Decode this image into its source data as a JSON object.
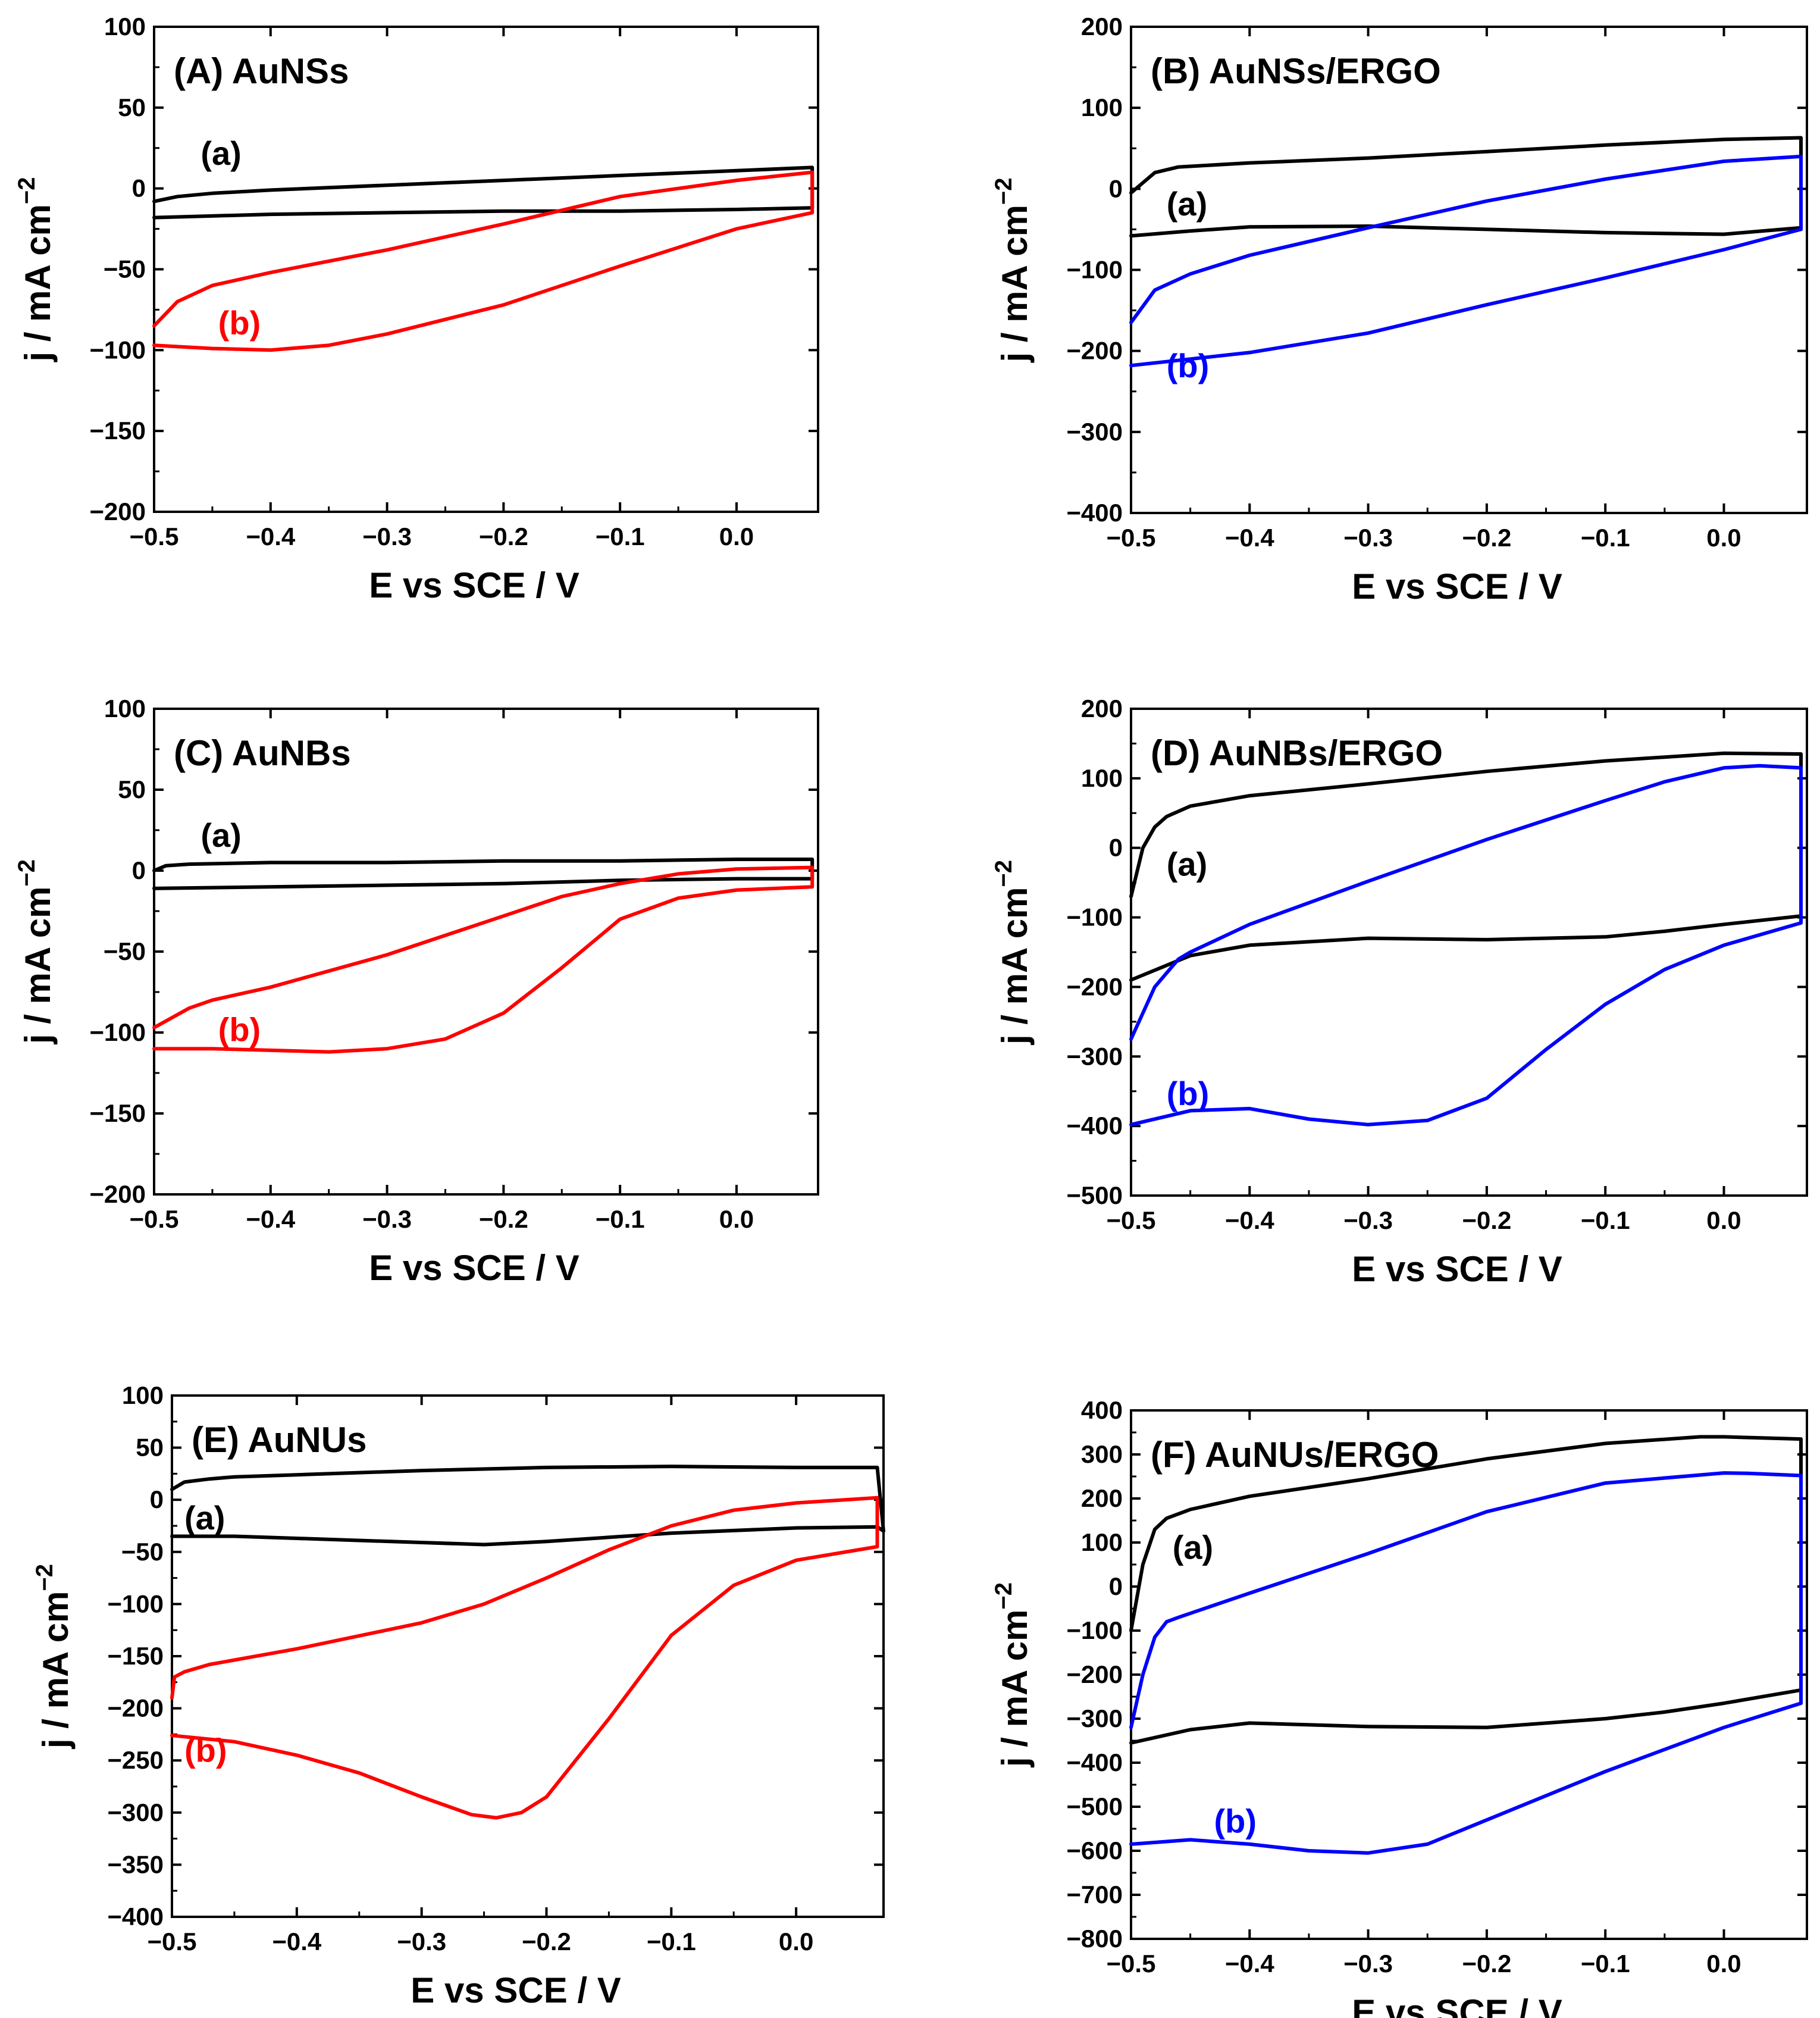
{
  "colors": {
    "black": "#000000",
    "red": "#ff0000",
    "blue": "#0000ff"
  },
  "chart_data": [
    {
      "type": "line",
      "panel": "A",
      "title": "(A) AuNSs",
      "xlabel": "E vs SCE / V",
      "ylabel": "j / mA cm",
      "ylabel_sup": "−2",
      "xlim": [
        -0.5,
        0.07
      ],
      "ylim": [
        -200,
        100
      ],
      "xticks": [
        -0.5,
        -0.4,
        -0.3,
        -0.2,
        -0.1,
        0.0
      ],
      "xtick_labels": [
        "−0.5",
        "−0.4",
        "−0.3",
        "−0.2",
        "−0.1",
        "0.0"
      ],
      "yticks": [
        100,
        50,
        0,
        -50,
        -100,
        -150,
        -200
      ],
      "ytick_labels": [
        "100",
        "50",
        "0",
        "−50",
        "−100",
        "−150",
        "−200"
      ],
      "series": [
        {
          "name": "(a)",
          "color": "#000000",
          "label_at": [
            -0.46,
            22
          ],
          "x": [
            -0.5,
            -0.48,
            -0.45,
            -0.4,
            -0.3,
            -0.2,
            -0.1,
            0.0,
            0.065,
            0.065,
            0.0,
            -0.1,
            -0.2,
            -0.3,
            -0.4,
            -0.45,
            -0.5
          ],
          "y": [
            -8,
            -5,
            -3,
            -1,
            2,
            5,
            8,
            11,
            13,
            -12,
            -13,
            -14,
            -14,
            -15,
            -16,
            -17,
            -18
          ]
        },
        {
          "name": "(b)",
          "color": "#ff0000",
          "label_at": [
            -0.445,
            -83
          ],
          "x": [
            -0.5,
            -0.48,
            -0.45,
            -0.4,
            -0.3,
            -0.2,
            -0.1,
            0.0,
            0.065,
            0.065,
            0.0,
            -0.1,
            -0.2,
            -0.3,
            -0.35,
            -0.4,
            -0.45,
            -0.5
          ],
          "y": [
            -85,
            -70,
            -60,
            -52,
            -38,
            -22,
            -5,
            5,
            10,
            -15,
            -25,
            -48,
            -72,
            -90,
            -97,
            -100,
            -99,
            -97
          ]
        }
      ]
    },
    {
      "type": "line",
      "panel": "B",
      "title": "(B) AuNSs/ERGO",
      "xlabel": "E vs SCE / V",
      "ylabel": "j / mA cm",
      "ylabel_sup": "−2",
      "xlim": [
        -0.5,
        0.07
      ],
      "ylim": [
        -400,
        200
      ],
      "xticks": [
        -0.5,
        -0.4,
        -0.3,
        -0.2,
        -0.1,
        0.0
      ],
      "xtick_labels": [
        "−0.5",
        "−0.4",
        "−0.3",
        "−0.2",
        "−0.1",
        "0.0"
      ],
      "yticks": [
        200,
        100,
        0,
        -100,
        -200,
        -300,
        -400
      ],
      "ytick_labels": [
        "200",
        "100",
        "0",
        "−100",
        "−200",
        "−300",
        "−400"
      ],
      "series": [
        {
          "name": "(a)",
          "color": "#000000",
          "label_at": [
            -0.47,
            -18
          ],
          "x": [
            -0.5,
            -0.48,
            -0.46,
            -0.4,
            -0.3,
            -0.2,
            -0.1,
            0.0,
            0.065,
            0.065,
            0.0,
            -0.1,
            -0.2,
            -0.3,
            -0.4,
            -0.45,
            -0.5
          ],
          "y": [
            -5,
            20,
            27,
            32,
            38,
            46,
            54,
            61,
            63,
            -48,
            -56,
            -54,
            -50,
            -46,
            -47,
            -52,
            -58
          ]
        },
        {
          "name": "(b)",
          "color": "#0000ff",
          "label_at": [
            -0.47,
            -218
          ],
          "x": [
            -0.5,
            -0.48,
            -0.45,
            -0.4,
            -0.3,
            -0.2,
            -0.1,
            0.0,
            0.065,
            0.065,
            0.0,
            -0.1,
            -0.2,
            -0.3,
            -0.4,
            -0.45,
            -0.5
          ],
          "y": [
            -165,
            -125,
            -105,
            -82,
            -48,
            -15,
            12,
            34,
            40,
            -50,
            -75,
            -110,
            -143,
            -178,
            -202,
            -210,
            -218
          ]
        }
      ]
    },
    {
      "type": "line",
      "panel": "C",
      "title": "(C) AuNBs",
      "xlabel": "E vs SCE / V",
      "ylabel": "j / mA cm",
      "ylabel_sup": "−2",
      "xlim": [
        -0.5,
        0.07
      ],
      "ylim": [
        -200,
        100
      ],
      "xticks": [
        -0.5,
        -0.4,
        -0.3,
        -0.2,
        -0.1,
        0.0
      ],
      "xtick_labels": [
        "−0.5",
        "−0.4",
        "−0.3",
        "−0.2",
        "−0.1",
        "0.0"
      ],
      "yticks": [
        100,
        50,
        0,
        -50,
        -100,
        -150,
        -200
      ],
      "ytick_labels": [
        "100",
        "50",
        "0",
        "−50",
        "−100",
        "−150",
        "−200"
      ],
      "series": [
        {
          "name": "(a)",
          "color": "#000000",
          "label_at": [
            -0.46,
            22
          ],
          "x": [
            -0.5,
            -0.49,
            -0.47,
            -0.4,
            -0.3,
            -0.2,
            -0.1,
            0.0,
            0.065,
            0.065,
            0.0,
            -0.1,
            -0.2,
            -0.3,
            -0.4,
            -0.5
          ],
          "y": [
            0,
            3,
            4,
            5,
            5,
            6,
            6,
            7,
            7,
            -5,
            -5,
            -6,
            -8,
            -9,
            -10,
            -11
          ]
        },
        {
          "name": "(b)",
          "color": "#ff0000",
          "label_at": [
            -0.445,
            -98
          ],
          "x": [
            -0.5,
            -0.47,
            -0.45,
            -0.4,
            -0.3,
            -0.2,
            -0.15,
            -0.1,
            -0.05,
            0.0,
            0.065,
            0.065,
            0.0,
            -0.05,
            -0.1,
            -0.15,
            -0.2,
            -0.25,
            -0.3,
            -0.35,
            -0.4,
            -0.45,
            -0.5
          ],
          "y": [
            -97,
            -85,
            -80,
            -72,
            -52,
            -28,
            -16,
            -8,
            -2,
            1,
            2,
            -10,
            -12,
            -17,
            -30,
            -60,
            -88,
            -104,
            -110,
            -112,
            -111,
            -110,
            -110
          ]
        }
      ]
    },
    {
      "type": "line",
      "panel": "D",
      "title": "(D) AuNBs/ERGO",
      "xlabel": "E vs SCE / V",
      "ylabel": "j / mA cm",
      "ylabel_sup": "−2",
      "xlim": [
        -0.5,
        0.07
      ],
      "ylim": [
        -500,
        200
      ],
      "xticks": [
        -0.5,
        -0.4,
        -0.3,
        -0.2,
        -0.1,
        0.0
      ],
      "xtick_labels": [
        "−0.5",
        "−0.4",
        "−0.3",
        "−0.2",
        "−0.1",
        "0.0"
      ],
      "yticks": [
        200,
        100,
        0,
        -100,
        -200,
        -300,
        -400,
        -500
      ],
      "ytick_labels": [
        "200",
        "100",
        "0",
        "−100",
        "−200",
        "−300",
        "−400",
        "−500"
      ],
      "series": [
        {
          "name": "(a)",
          "color": "#000000",
          "label_at": [
            -0.47,
            -23
          ],
          "x": [
            -0.5,
            -0.49,
            -0.48,
            -0.47,
            -0.45,
            -0.4,
            -0.3,
            -0.2,
            -0.1,
            0.0,
            0.065,
            0.065,
            0.0,
            -0.05,
            -0.1,
            -0.2,
            -0.3,
            -0.4,
            -0.45,
            -0.5
          ],
          "y": [
            -70,
            0,
            30,
            45,
            60,
            75,
            92,
            110,
            125,
            136,
            135,
            -98,
            -110,
            -120,
            -128,
            -132,
            -130,
            -140,
            -155,
            -190
          ]
        },
        {
          "name": "(b)",
          "color": "#0000ff",
          "label_at": [
            -0.47,
            -353
          ],
          "x": [
            -0.5,
            -0.48,
            -0.46,
            -0.45,
            -0.4,
            -0.3,
            -0.2,
            -0.1,
            -0.05,
            0.0,
            0.03,
            0.065,
            0.065,
            0.0,
            -0.05,
            -0.1,
            -0.15,
            -0.2,
            -0.25,
            -0.3,
            -0.35,
            -0.4,
            -0.45,
            -0.5
          ],
          "y": [
            -275,
            -200,
            -160,
            -150,
            -110,
            -48,
            12,
            68,
            95,
            115,
            118,
            115,
            -108,
            -140,
            -175,
            -225,
            -290,
            -360,
            -392,
            -398,
            -390,
            -375,
            -378,
            -398
          ]
        }
      ]
    },
    {
      "type": "line",
      "panel": "E",
      "title": "(E) AuNUs",
      "xlabel": "E vs SCE / V",
      "ylabel": "j / mA cm",
      "ylabel_sup": "−2",
      "xlim": [
        -0.5,
        0.07
      ],
      "ylim": [
        -400,
        100
      ],
      "xticks": [
        -0.5,
        -0.4,
        -0.3,
        -0.2,
        -0.1,
        0.0
      ],
      "xtick_labels": [
        "−0.5",
        "−0.4",
        "−0.3",
        "−0.2",
        "−0.1",
        "0.0"
      ],
      "yticks": [
        100,
        50,
        0,
        -50,
        -100,
        -150,
        -200,
        -250,
        -300,
        -350,
        -400
      ],
      "ytick_labels": [
        "100",
        "50",
        "0",
        "−50",
        "−100",
        "−150",
        "−200",
        "−250",
        "−300",
        "−350",
        "−400"
      ],
      "series": [
        {
          "name": "(a)",
          "color": "#000000",
          "label_at": [
            -0.49,
            -17
          ],
          "x": [
            -0.5,
            -0.49,
            -0.47,
            -0.45,
            -0.4,
            -0.3,
            -0.2,
            -0.1,
            0.0,
            0.065,
            0.07,
            0.065,
            0.0,
            -0.1,
            -0.2,
            -0.25,
            -0.3,
            -0.4,
            -0.45,
            -0.5
          ],
          "y": [
            10,
            17,
            20,
            22,
            24,
            28,
            31,
            32,
            31,
            31,
            -30,
            -26,
            -27,
            -32,
            -40,
            -43,
            -41,
            -37,
            -35,
            -35
          ]
        },
        {
          "name": "(b)",
          "color": "#ff0000",
          "label_at": [
            -0.49,
            -240
          ],
          "x": [
            -0.5,
            -0.498,
            -0.49,
            -0.47,
            -0.4,
            -0.3,
            -0.25,
            -0.2,
            -0.15,
            -0.1,
            -0.05,
            0.0,
            0.065,
            0.065,
            0.0,
            -0.05,
            -0.1,
            -0.15,
            -0.2,
            -0.22,
            -0.24,
            -0.26,
            -0.3,
            -0.35,
            -0.4,
            -0.45,
            -0.5
          ],
          "y": [
            -190,
            -170,
            -165,
            -158,
            -143,
            -118,
            -100,
            -75,
            -48,
            -25,
            -10,
            -3,
            2,
            -45,
            -58,
            -82,
            -130,
            -210,
            -285,
            -300,
            -305,
            -302,
            -285,
            -262,
            -245,
            -232,
            -226
          ]
        }
      ]
    },
    {
      "type": "line",
      "panel": "F",
      "title": "(F) AuNUs/ERGO",
      "xlabel": "E vs SCE / V",
      "ylabel": "j / mA cm",
      "ylabel_sup": "−2",
      "xlim": [
        -0.5,
        0.07
      ],
      "ylim": [
        -800,
        400
      ],
      "xticks": [
        -0.5,
        -0.4,
        -0.3,
        -0.2,
        -0.1,
        0.0
      ],
      "xtick_labels": [
        "−0.5",
        "−0.4",
        "−0.3",
        "−0.2",
        "−0.1",
        "0.0"
      ],
      "yticks": [
        400,
        300,
        200,
        100,
        0,
        -100,
        -200,
        -300,
        -400,
        -500,
        -600,
        -700,
        -800
      ],
      "ytick_labels": [
        "400",
        "300",
        "200",
        "100",
        "0",
        "−100",
        "−200",
        "−300",
        "−400",
        "−500",
        "−600",
        "−700",
        "−800"
      ],
      "series": [
        {
          "name": "(a)",
          "color": "#000000",
          "label_at": [
            -0.465,
            90
          ],
          "x": [
            -0.5,
            -0.49,
            -0.48,
            -0.47,
            -0.45,
            -0.4,
            -0.3,
            -0.2,
            -0.1,
            -0.02,
            0.0,
            0.065,
            0.065,
            0.0,
            -0.05,
            -0.1,
            -0.2,
            -0.3,
            -0.4,
            -0.45,
            -0.5
          ],
          "y": [
            -100,
            50,
            130,
            155,
            175,
            205,
            245,
            290,
            325,
            340,
            340,
            335,
            -235,
            -265,
            -285,
            -300,
            -320,
            -318,
            -310,
            -325,
            -355
          ]
        },
        {
          "name": "(b)",
          "color": "#0000ff",
          "label_at": [
            -0.43,
            -532
          ],
          "x": [
            -0.5,
            -0.49,
            -0.48,
            -0.47,
            -0.46,
            -0.4,
            -0.3,
            -0.2,
            -0.1,
            0.0,
            0.02,
            0.065,
            0.065,
            0.0,
            -0.1,
            -0.2,
            -0.25,
            -0.3,
            -0.35,
            -0.4,
            -0.45,
            -0.5
          ],
          "y": [
            -320,
            -200,
            -115,
            -80,
            -70,
            -15,
            75,
            170,
            235,
            258,
            257,
            252,
            -265,
            -320,
            -420,
            -530,
            -585,
            -605,
            -600,
            -585,
            -575,
            -585
          ]
        }
      ]
    }
  ]
}
